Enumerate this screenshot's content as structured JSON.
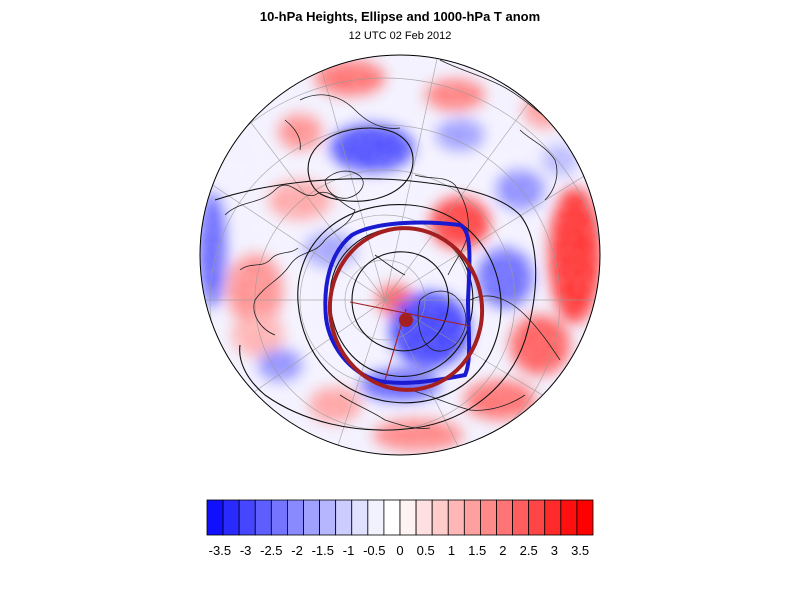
{
  "title": "10-hPa Heights, Ellipse and 1000-hPa T anom",
  "subtitle": "12 UTC 02 Feb 2012",
  "colorbar": {
    "tick_labels": [
      "-3.5",
      "-3",
      "-2.5",
      "-2",
      "-1.5",
      "-1",
      "-0.5",
      "0",
      "0.5",
      "1",
      "1.5",
      "2",
      "2.5",
      "3",
      "3.5"
    ],
    "colors": [
      "#1010ff",
      "#2a2aff",
      "#4646ff",
      "#5e5eff",
      "#7474ff",
      "#8a8aff",
      "#a0a0ff",
      "#b6b6ff",
      "#ccccff",
      "#e0e0ff",
      "#f2f2ff",
      "#ffffff",
      "#fff2f2",
      "#ffe0e0",
      "#ffcccc",
      "#ffb6b6",
      "#ffa0a0",
      "#ff8a8a",
      "#ff7474",
      "#ff5e5e",
      "#ff4646",
      "#ff2a2a",
      "#ff1010",
      "#ff0000"
    ]
  },
  "legend_colors": {
    "cold": "#2020ff",
    "warm": "#ff2020",
    "vortex_contour": "#1010cc",
    "ellipse": "#a02020"
  }
}
